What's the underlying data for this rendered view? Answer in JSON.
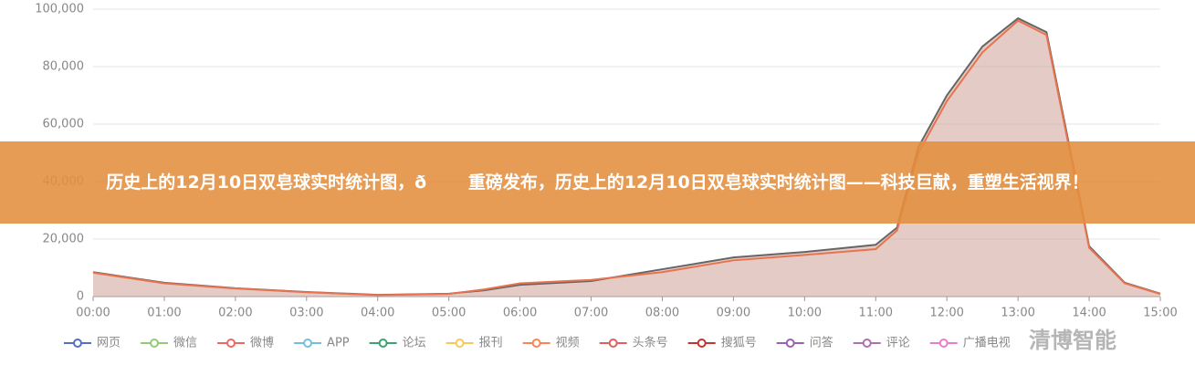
{
  "chart_data": {
    "type": "area",
    "title": "历史上的12月10日双皂球实时统计图，ð重磅发布，历史上的12月10日双皂球实时统计图——科技巨献，重塑生活视界！",
    "x": [
      0,
      1,
      2,
      3,
      4,
      5,
      5.5,
      6,
      7,
      8,
      9,
      10,
      11,
      11.3,
      11.6,
      12,
      12.5,
      13,
      13.4,
      13.7,
      14,
      14.5,
      15
    ],
    "series": [
      {
        "color": "#666666",
        "values": [
          8500,
          4800,
          2900,
          1600,
          600,
          1000,
          2200,
          4100,
          5400,
          9500,
          13600,
          15500,
          18000,
          24000,
          52000,
          70000,
          87000,
          96800,
          92000,
          55000,
          17500,
          4800,
          1000
        ]
      },
      {
        "color": "#e8734e",
        "values": [
          8300,
          4600,
          2800,
          1500,
          500,
          900,
          2500,
          4600,
          5800,
          8500,
          12600,
          14500,
          16500,
          23000,
          50000,
          68000,
          85000,
          96000,
          91000,
          54000,
          17000,
          4600,
          900
        ]
      }
    ],
    "xlim": [
      0,
      15
    ],
    "xticks": [
      {
        "value": 0,
        "label": "00:00"
      },
      {
        "value": 1,
        "label": "01:00"
      },
      {
        "value": 2,
        "label": "02:00"
      },
      {
        "value": 3,
        "label": "03:00"
      },
      {
        "value": 4,
        "label": "04:00"
      },
      {
        "value": 5,
        "label": "05:00"
      },
      {
        "value": 6,
        "label": "06:00"
      },
      {
        "value": 7,
        "label": "07:00"
      },
      {
        "value": 8,
        "label": "08:00"
      },
      {
        "value": 9,
        "label": "09:00"
      },
      {
        "value": 10,
        "label": "10:00"
      },
      {
        "value": 11,
        "label": "11:00"
      },
      {
        "value": 12,
        "label": "12:00"
      },
      {
        "value": 13,
        "label": "13:00"
      },
      {
        "value": 14,
        "label": "14:00"
      },
      {
        "value": 15,
        "label": "15:00"
      }
    ],
    "ylim": [
      0,
      100000
    ],
    "yticks": [
      0,
      {
        "value": 20000,
        "label": "20,000"
      },
      {
        "value": 40000,
        "label": "40,000"
      },
      {
        "value": 60000,
        "label": "60,000"
      },
      {
        "value": 80000,
        "label": "80,000"
      },
      {
        "value": 100000,
        "label": "100,000"
      }
    ],
    "grid": true,
    "legend": [
      {
        "name": "网页",
        "color": "#5470c6"
      },
      {
        "name": "微信",
        "color": "#91cc75"
      },
      {
        "name": "微博",
        "color": "#ee6666"
      },
      {
        "name": "APP",
        "color": "#73c0de"
      },
      {
        "name": "论坛",
        "color": "#3ba272"
      },
      {
        "name": "报刊",
        "color": "#fac858"
      },
      {
        "name": "视频",
        "color": "#fc8452"
      },
      {
        "name": "头条号",
        "color": "#e06060"
      },
      {
        "name": "搜狐号",
        "color": "#c23531"
      },
      {
        "name": "问答",
        "color": "#9a60b4"
      },
      {
        "name": "评论",
        "color": "#b06fb0"
      },
      {
        "name": "广播电视",
        "color": "#ea7ccc"
      }
    ],
    "watermark": "清博智能"
  }
}
